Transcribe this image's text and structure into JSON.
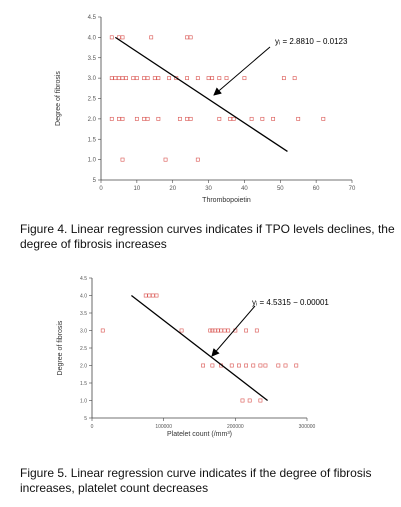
{
  "chart_data": [
    {
      "type": "scatter",
      "xlabel": "Thrombopoietin",
      "ylabel": "Degree of fibrosis",
      "xlim": [
        0,
        70
      ],
      "ylim": [
        0.5,
        4.5
      ],
      "xticks": [
        "0",
        "10",
        "20",
        "30",
        "40",
        "50",
        "60",
        "70"
      ],
      "yticks": [
        "5",
        "1.0",
        "1.5",
        "2.0",
        "2.5",
        "3.0",
        "3.5",
        "4.0",
        "4.5"
      ],
      "equation": "yᵢ = 2.8810 − 0.0123",
      "regression_line": {
        "x": [
          4,
          52
        ],
        "y": [
          4.0,
          1.2
        ]
      },
      "points": [
        [
          3,
          4.0
        ],
        [
          5,
          4.0
        ],
        [
          6,
          4.0
        ],
        [
          14,
          4.0
        ],
        [
          24,
          4.0
        ],
        [
          25,
          4.0
        ],
        [
          3,
          3.0
        ],
        [
          4,
          3.0
        ],
        [
          5,
          3.0
        ],
        [
          6,
          3.0
        ],
        [
          7,
          3.0
        ],
        [
          9,
          3.0
        ],
        [
          10,
          3.0
        ],
        [
          12,
          3.0
        ],
        [
          13,
          3.0
        ],
        [
          15,
          3.0
        ],
        [
          16,
          3.0
        ],
        [
          19,
          3.0
        ],
        [
          21,
          3.0
        ],
        [
          24,
          3.0
        ],
        [
          27,
          3.0
        ],
        [
          30,
          3.0
        ],
        [
          31,
          3.0
        ],
        [
          33,
          3.0
        ],
        [
          35,
          3.0
        ],
        [
          40,
          3.0
        ],
        [
          51,
          3.0
        ],
        [
          54,
          3.0
        ],
        [
          3,
          2.0
        ],
        [
          5,
          2.0
        ],
        [
          6,
          2.0
        ],
        [
          10,
          2.0
        ],
        [
          12,
          2.0
        ],
        [
          13,
          2.0
        ],
        [
          16,
          2.0
        ],
        [
          22,
          2.0
        ],
        [
          24,
          2.0
        ],
        [
          25,
          2.0
        ],
        [
          33,
          2.0
        ],
        [
          36,
          2.0
        ],
        [
          37,
          2.0
        ],
        [
          42,
          2.0
        ],
        [
          45,
          2.0
        ],
        [
          48,
          2.0
        ],
        [
          55,
          2.0
        ],
        [
          62,
          2.0
        ],
        [
          6,
          1.0
        ],
        [
          18,
          1.0
        ],
        [
          27,
          1.0
        ]
      ]
    },
    {
      "type": "scatter",
      "xlabel": "Platelet count (/mm³)",
      "ylabel": "Degree of fibrosis",
      "xlim": [
        0,
        300000
      ],
      "ylim": [
        0.5,
        4.5
      ],
      "xticks": [
        "0",
        "100000",
        "200000",
        "300000"
      ],
      "yticks": [
        "5",
        "1.0",
        "1.5",
        "2.0",
        "2.5",
        "3.0",
        "3.5",
        "4.0",
        "4.5"
      ],
      "equation": "yᵢ = 4.5315 − 0.00001",
      "regression_line": {
        "x": [
          55000,
          245000
        ],
        "y": [
          4.0,
          1.0
        ]
      },
      "points": [
        [
          15000,
          3.0
        ],
        [
          75000,
          4.0
        ],
        [
          80000,
          4.0
        ],
        [
          85000,
          4.0
        ],
        [
          90000,
          4.0
        ],
        [
          125000,
          3.0
        ],
        [
          165000,
          3.0
        ],
        [
          168000,
          3.0
        ],
        [
          172000,
          3.0
        ],
        [
          176000,
          3.0
        ],
        [
          180000,
          3.0
        ],
        [
          185000,
          3.0
        ],
        [
          190000,
          3.0
        ],
        [
          200000,
          3.0
        ],
        [
          215000,
          3.0
        ],
        [
          230000,
          3.0
        ],
        [
          155000,
          2.0
        ],
        [
          168000,
          2.0
        ],
        [
          180000,
          2.0
        ],
        [
          195000,
          2.0
        ],
        [
          205000,
          2.0
        ],
        [
          215000,
          2.0
        ],
        [
          225000,
          2.0
        ],
        [
          235000,
          2.0
        ],
        [
          242000,
          2.0
        ],
        [
          260000,
          2.0
        ],
        [
          270000,
          2.0
        ],
        [
          285000,
          2.0
        ],
        [
          210000,
          1.0
        ],
        [
          220000,
          1.0
        ],
        [
          235000,
          1.0
        ]
      ]
    }
  ],
  "captions": [
    "Figure 4. Linear regression curves indicates if TPO levels declines, the degree of fibrosis increases",
    "Figure 5. Linear regression curve indicates if the degree of fibrosis increases, platelet count decreases"
  ],
  "colors": {
    "point": "#d9534f",
    "line": "#000000",
    "axis": "#444444"
  }
}
